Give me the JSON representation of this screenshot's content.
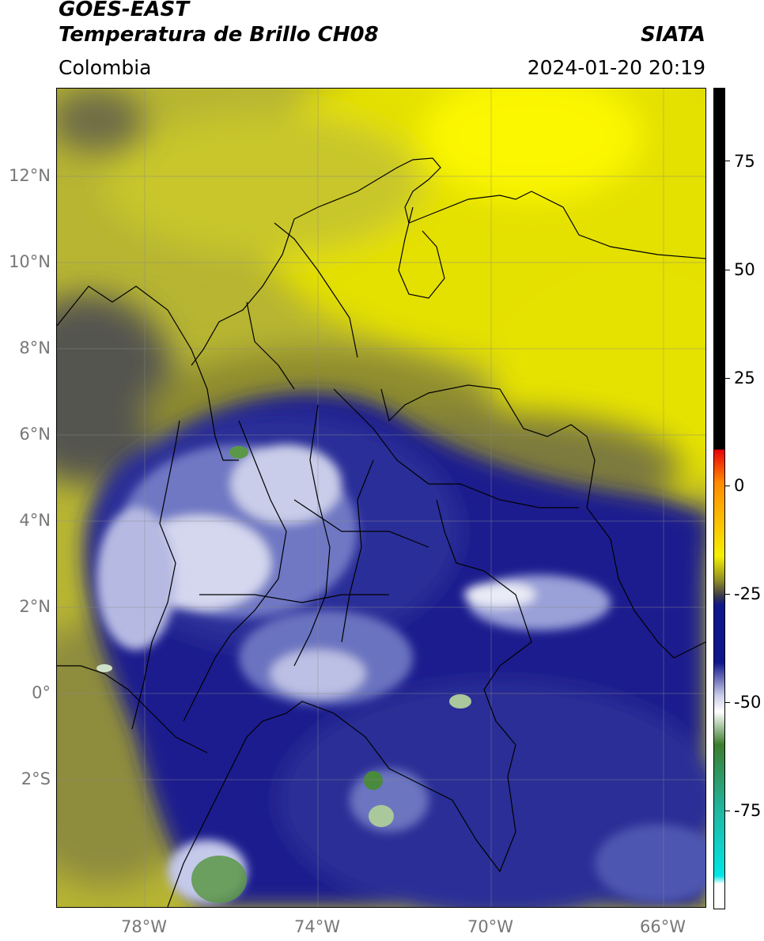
{
  "header": {
    "title_line1": "GOES-EAST",
    "title_line2": "Temperatura de Brillo CH08",
    "brand": "SIATA",
    "region": "Colombia",
    "datetime": "2024-01-20 20:19"
  },
  "map": {
    "lat_labels": [
      "12°N",
      "10°N",
      "8°N",
      "6°N",
      "4°N",
      "2°N",
      "0°",
      "2°S"
    ],
    "lon_labels": [
      "78°W",
      "74°W",
      "70°W",
      "66°W"
    ],
    "colors": {
      "dry_bright": "#f4f000",
      "dry_olive": "#b7b532",
      "dark_olive": "#6e6c46",
      "gray": "#55554f",
      "deep_blue": "#1a1d8e",
      "mid_blue": "#5a62b8",
      "cloud_white": "#e9ebf6",
      "cold_green": "#5a9848"
    }
  },
  "colorbar": {
    "ticks": [
      "75",
      "50",
      "25",
      "0",
      "-25",
      "-50",
      "-75"
    ],
    "colors": [
      "#000000",
      "#e8000a",
      "#ff8a00",
      "#f6f000",
      "#8e8c25",
      "#33334e",
      "#10168c",
      "#c9cbe7",
      "#ffffff",
      "#3c7d2e",
      "#21b6a0",
      "#00e6e6",
      "#ffffff"
    ]
  }
}
